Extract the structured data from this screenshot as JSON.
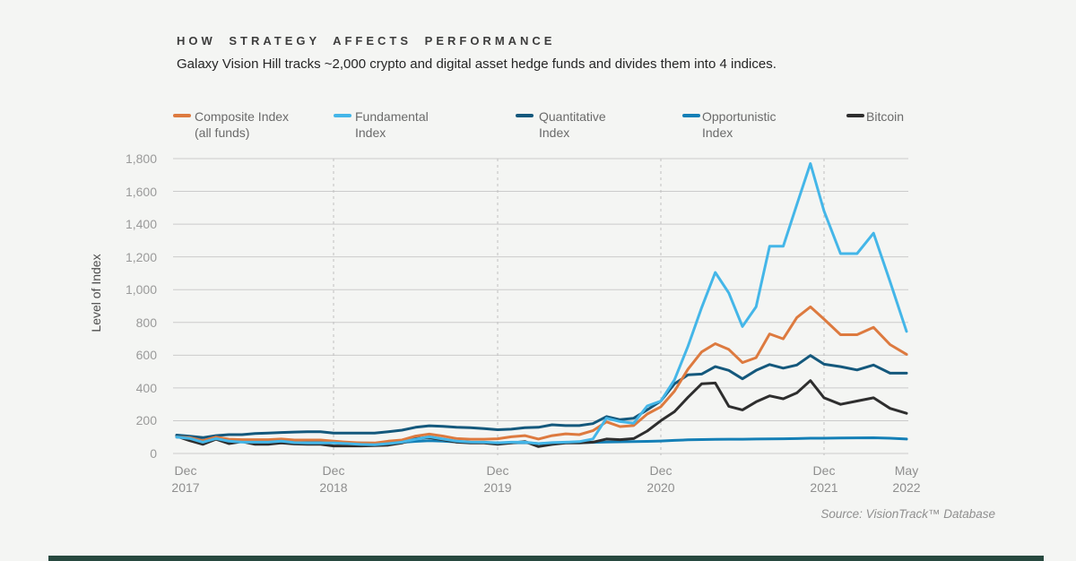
{
  "page": {
    "title": "HOW STRATEGY AFFECTS PERFORMANCE",
    "subtitle": "Galaxy Vision Hill tracks ~2,000 crypto and digital asset hedge funds and divides them into 4 indices.",
    "source": "Source: VisionTrack™ Database"
  },
  "colors": {
    "background": "#F4F5F3",
    "gridline": "#CBCBCB",
    "gridline_dashed": "#BFBFBF",
    "footer_bar": "#27493F",
    "title_text": "#3D3D3D",
    "legend_text": "#6A6A6A",
    "tick_text": "#9A9A9A"
  },
  "chart_data": {
    "type": "line",
    "title": "HOW STRATEGY AFFECTS PERFORMANCE",
    "xlabel": "",
    "ylabel": "Level of Index",
    "ylim": [
      0,
      1800
    ],
    "grid": "horizontal solid, yearly vertical dashed",
    "legend_position": "top",
    "y_ticks": [
      {
        "value": 0,
        "label": "0"
      },
      {
        "value": 200,
        "label": "200"
      },
      {
        "value": 400,
        "label": "400"
      },
      {
        "value": 600,
        "label": "600"
      },
      {
        "value": 800,
        "label": "800"
      },
      {
        "value": 1000,
        "label": "1,000"
      },
      {
        "value": 1200,
        "label": "1,200"
      },
      {
        "value": 1400,
        "label": "1,400"
      },
      {
        "value": 1600,
        "label": "1,600"
      },
      {
        "value": 1800,
        "label": "1,800"
      }
    ],
    "x_ticks": [
      {
        "month_index": 0,
        "top": "Dec",
        "bottom": "2017"
      },
      {
        "month_index": 12,
        "top": "Dec",
        "bottom": "2018"
      },
      {
        "month_index": 24,
        "top": "Dec",
        "bottom": "2019"
      },
      {
        "month_index": 36,
        "top": "Dec",
        "bottom": "2020"
      },
      {
        "month_index": 48,
        "top": "Dec",
        "bottom": "2021"
      },
      {
        "month_index": 53,
        "top": "May",
        "bottom": "2022"
      }
    ],
    "x_note": "monthly points from Dec 2017 (index 0) to May 2022 (index 53)",
    "legend": [
      {
        "key": "composite",
        "lines": [
          "Composite Index",
          "(all funds)"
        ]
      },
      {
        "key": "fundamental",
        "lines": [
          "Fundamental",
          "Index"
        ]
      },
      {
        "key": "quantitative",
        "lines": [
          "Quantitative",
          "Index"
        ]
      },
      {
        "key": "opportunistic",
        "lines": [
          "Opportunistic",
          "Index"
        ]
      },
      {
        "key": "bitcoin",
        "lines": [
          "Bitcoin"
        ]
      }
    ],
    "series": [
      {
        "key": "composite",
        "name": "Composite Index (all funds)",
        "color": "#DD7A3F",
        "values": [
          100,
          97,
          78,
          100,
          87,
          84,
          84,
          84,
          88,
          82,
          82,
          82,
          75,
          69,
          64,
          64,
          75,
          82,
          106,
          118,
          106,
          91,
          87,
          87,
          90,
          102,
          109,
          88,
          109,
          120,
          115,
          139,
          193,
          164,
          170,
          241,
          285,
          380,
          515,
          620,
          670,
          635,
          555,
          585,
          730,
          700,
          830,
          895,
          820,
          725,
          725,
          770,
          665,
          605
        ]
      },
      {
        "key": "fundamental",
        "name": "Fundamental Index",
        "color": "#44B6E8",
        "values": [
          100,
          92,
          69,
          91,
          75,
          69,
          69,
          69,
          75,
          66,
          64,
          64,
          64,
          60,
          55,
          53,
          60,
          69,
          87,
          102,
          88,
          75,
          70,
          69,
          65,
          69,
          69,
          60,
          66,
          69,
          72,
          88,
          215,
          195,
          185,
          290,
          320,
          450,
          655,
          890,
          1105,
          980,
          775,
          895,
          1265,
          1265,
          1520,
          1770,
          1480,
          1220,
          1220,
          1345,
          1050,
          745
        ]
      },
      {
        "key": "quantitative",
        "name": "Quantitative Index",
        "color": "#14587C",
        "values": [
          112,
          105,
          97,
          109,
          115,
          115,
          122,
          124,
          128,
          131,
          133,
          133,
          124,
          124,
          124,
          124,
          133,
          142,
          160,
          169,
          166,
          160,
          157,
          152,
          145,
          148,
          157,
          160,
          175,
          170,
          170,
          182,
          225,
          206,
          215,
          266,
          320,
          425,
          480,
          485,
          530,
          507,
          456,
          507,
          543,
          521,
          540,
          598,
          545,
          530,
          510,
          540,
          490,
          490
        ]
      },
      {
        "key": "opportunistic",
        "name": "Opportunistic Index",
        "color": "#147FB6",
        "values": [
          100,
          95,
          80,
          90,
          82,
          78,
          75,
          74,
          76,
          72,
          70,
          70,
          68,
          66,
          64,
          63,
          65,
          68,
          74,
          78,
          75,
          70,
          68,
          66,
          64,
          65,
          66,
          60,
          63,
          65,
          66,
          68,
          70,
          71,
          72,
          74,
          76,
          80,
          83,
          85,
          86,
          87,
          87,
          88,
          89,
          90,
          91,
          93,
          93,
          94,
          95,
          96,
          93,
          88
        ]
      },
      {
        "key": "bitcoin",
        "name": "Bitcoin",
        "color": "#2E2E2E",
        "values": [
          105,
          78,
          56,
          87,
          60,
          72,
          56,
          56,
          64,
          58,
          56,
          56,
          46,
          46,
          46,
          48,
          51,
          64,
          91,
          97,
          84,
          69,
          64,
          64,
          56,
          64,
          73,
          42,
          55,
          64,
          64,
          69,
          88,
          84,
          91,
          137,
          200,
          255,
          343,
          425,
          430,
          288,
          266,
          315,
          352,
          334,
          370,
          445,
          340,
          300,
          320,
          340,
          275,
          245
        ]
      }
    ]
  }
}
